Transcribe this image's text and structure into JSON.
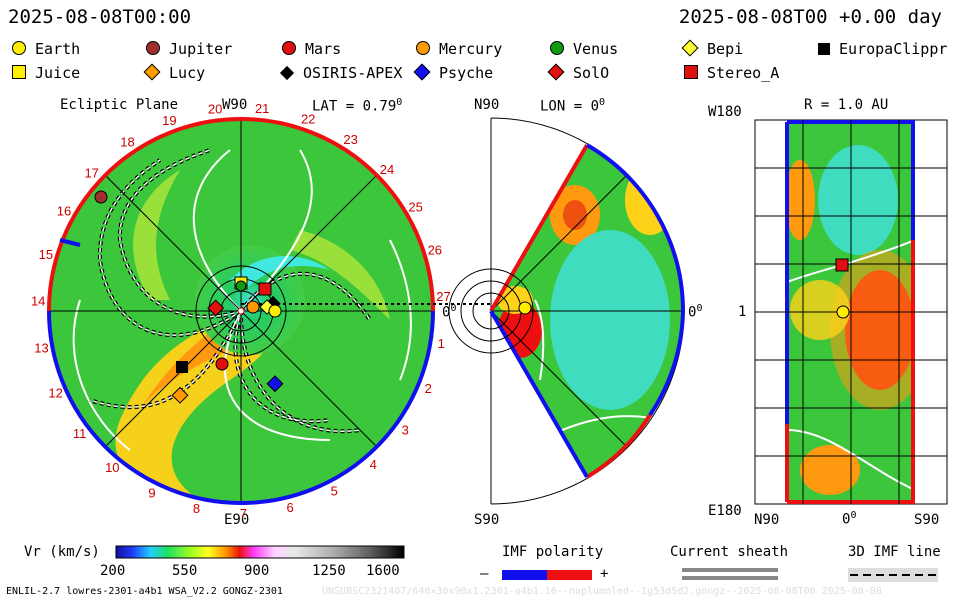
{
  "header": {
    "left_datetime": "2025-08-08T00:00",
    "right_datetime": "2025-08-08T00 +0.00 day"
  },
  "legend": [
    {
      "name": "Earth",
      "shape": "circle",
      "color": "#ffee00"
    },
    {
      "name": "Jupiter",
      "shape": "circle",
      "color": "#a03030"
    },
    {
      "name": "Mars",
      "shape": "circle",
      "color": "#e01010"
    },
    {
      "name": "Mercury",
      "shape": "circle",
      "color": "#ff9900"
    },
    {
      "name": "Venus",
      "shape": "circle",
      "color": "#119911"
    },
    {
      "name": "Bepi",
      "shape": "diamond",
      "color": "#ffff33"
    },
    {
      "name": "EuropaClippr",
      "shape": "square",
      "color": "#000000"
    },
    {
      "name": "Juice",
      "shape": "square",
      "color": "#ffee00"
    },
    {
      "name": "Lucy",
      "shape": "diamond",
      "color": "#ff9900"
    },
    {
      "name": "OSIRIS-APEX",
      "shape": "diamond",
      "color": "#000000"
    },
    {
      "name": "Psyche",
      "shape": "diamond",
      "color": "#1010ee"
    },
    {
      "name": "SolO",
      "shape": "diamond",
      "color": "#e01010"
    },
    {
      "name": "Stereo_A",
      "shape": "square",
      "color": "#e01010"
    }
  ],
  "panel_ecliptic": {
    "title": "Ecliptic Plane",
    "top_label": "W90",
    "lat_label": "LAT = 0.79",
    "lat_sup": "0",
    "right_label": "0",
    "right_sup": "0",
    "bottom_label": "E90",
    "sector_numbers": [
      "15",
      "16",
      "17",
      "18",
      "19",
      "20",
      "21",
      "22",
      "23",
      "24",
      "25",
      "26",
      "27",
      "1",
      "2",
      "3",
      "4",
      "5",
      "6",
      "7",
      "8",
      "9",
      "10",
      "11",
      "12",
      "13",
      "14"
    ]
  },
  "panel_meridional": {
    "top_label": "N90",
    "lon_label": "LON = 0",
    "lon_sup": "0",
    "right_label": "0",
    "right_sup": "0",
    "bottom_label": "S90"
  },
  "panel_map": {
    "top_left_label": "W180",
    "r_label": "R = 1.0 AU",
    "mid_left_label": "1",
    "bottom_left_label": "E180",
    "x_labels": [
      "N90",
      "0",
      "S90"
    ],
    "x_sup": "0"
  },
  "colorbar": {
    "label": "Vr (km/s)",
    "ticks": [
      "200",
      "550",
      "900",
      "1250",
      "1600"
    ],
    "min": 200,
    "max": 1600
  },
  "imf": {
    "title": "IMF polarity",
    "minus": "–",
    "plus": "+",
    "neg_color": "#1010ee",
    "pos_color": "#ee1010"
  },
  "sheath": {
    "title": "Current sheath"
  },
  "imf3d": {
    "title": "3D IMF line"
  },
  "footer": {
    "left": "ENLIL-2.7 lowres-2301-a4b1 WSA_V2.2 GONGZ-2301",
    "right": "UNSUBSC2321407/640x30x90x1.2301-a4b1.16--noplumnled--1g53d5d2.gongz--2025-08-08T00     2025-08-08"
  }
}
